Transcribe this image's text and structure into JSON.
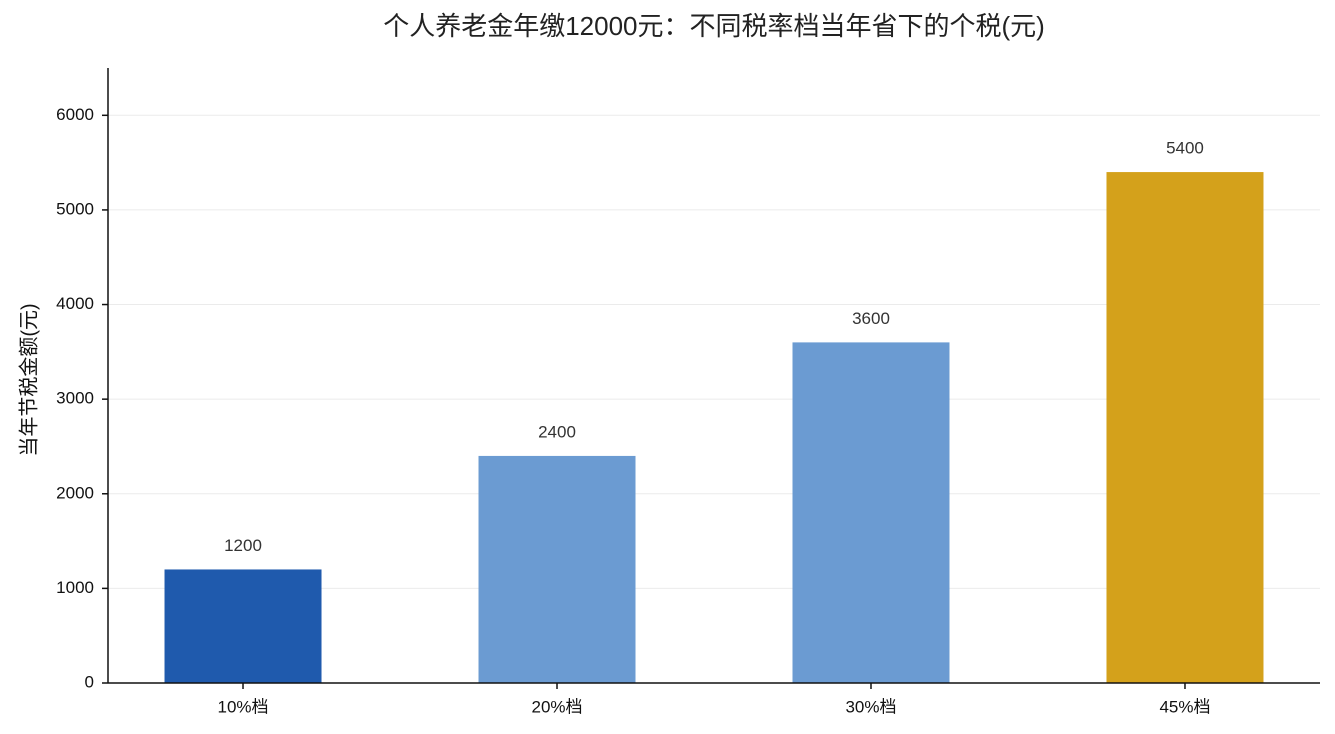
{
  "chart_data": {
    "type": "bar",
    "title": "个人养老金年缴12000元：不同税率档当年省下的个税(元)",
    "y_label": "当年节税金额(元)",
    "categories": [
      "10%档",
      "20%档",
      "30%档",
      "45%档"
    ],
    "values": [
      1200,
      2400,
      3600,
      5400
    ],
    "colors": [
      "#1f5aad",
      "#6b9bd2",
      "#6b9bd2",
      "#d4a11b"
    ],
    "ylim": [
      0,
      6500
    ],
    "yticks": [
      0,
      1000,
      2000,
      3000,
      4000,
      5000,
      6000
    ],
    "grid": true
  }
}
